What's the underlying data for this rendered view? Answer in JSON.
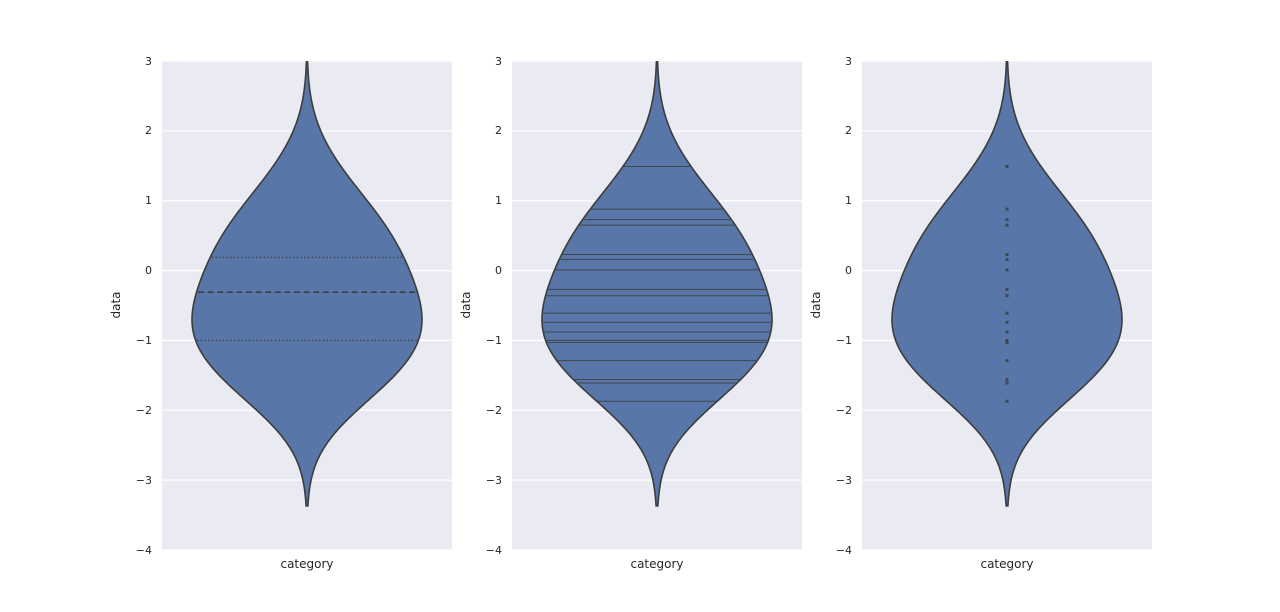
{
  "figure": {
    "background": "#ffffff",
    "panel_background": "#eaeaf2",
    "grid_color": "#ffffff",
    "text_color": "#262626"
  },
  "chart_data": {
    "type": "violin",
    "title": "",
    "shared": {
      "xlabel": "category",
      "ylabel": "data",
      "ylim": [
        -4,
        3
      ],
      "yticks": [
        3,
        2,
        1,
        0,
        -1,
        -2,
        -3,
        -4
      ],
      "grid": "horizontal-white-on-lavender",
      "legend": "none",
      "observations": [
        1.49,
        0.88,
        0.73,
        0.65,
        0.23,
        0.16,
        0.01,
        -0.27,
        -0.36,
        -0.61,
        -0.74,
        -0.88,
        -1.0,
        -1.03,
        -1.29,
        -1.56,
        -1.61,
        -1.87
      ],
      "quartiles": {
        "q1": -1.0,
        "median": -0.31,
        "q3": 0.19
      },
      "kde": {
        "bandwidth": 0.6,
        "support": [
          -3.37,
          2.99
        ]
      },
      "violin_fill": "#5876a7",
      "violin_edge": "#3d3d3d",
      "inner_color": "#3d3d3d"
    },
    "panels": [
      {
        "inner": "quartile",
        "category": "category"
      },
      {
        "inner": "stick",
        "category": "category"
      },
      {
        "inner": "point",
        "category": "category"
      }
    ]
  }
}
